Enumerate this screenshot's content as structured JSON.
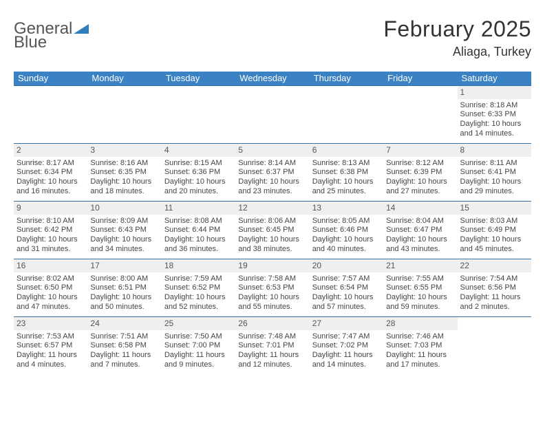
{
  "brand": {
    "text1": "General",
    "text2": "Blue",
    "text_color": "#555555",
    "accent_color": "#2f7fbf"
  },
  "title": "February 2025",
  "location": "Aliaga, Turkey",
  "header_bg": "#3b82c4",
  "header_fg": "#ffffff",
  "rule_color": "#3b6fa0",
  "daynum_bg": "#efefef",
  "day_names": [
    "Sunday",
    "Monday",
    "Tuesday",
    "Wednesday",
    "Thursday",
    "Friday",
    "Saturday"
  ],
  "weeks": [
    [
      {
        "n": "",
        "sr": "",
        "ss": "",
        "dl": ""
      },
      {
        "n": "",
        "sr": "",
        "ss": "",
        "dl": ""
      },
      {
        "n": "",
        "sr": "",
        "ss": "",
        "dl": ""
      },
      {
        "n": "",
        "sr": "",
        "ss": "",
        "dl": ""
      },
      {
        "n": "",
        "sr": "",
        "ss": "",
        "dl": ""
      },
      {
        "n": "",
        "sr": "",
        "ss": "",
        "dl": ""
      },
      {
        "n": "1",
        "sr": "Sunrise: 8:18 AM",
        "ss": "Sunset: 6:33 PM",
        "dl": "Daylight: 10 hours and 14 minutes."
      }
    ],
    [
      {
        "n": "2",
        "sr": "Sunrise: 8:17 AM",
        "ss": "Sunset: 6:34 PM",
        "dl": "Daylight: 10 hours and 16 minutes."
      },
      {
        "n": "3",
        "sr": "Sunrise: 8:16 AM",
        "ss": "Sunset: 6:35 PM",
        "dl": "Daylight: 10 hours and 18 minutes."
      },
      {
        "n": "4",
        "sr": "Sunrise: 8:15 AM",
        "ss": "Sunset: 6:36 PM",
        "dl": "Daylight: 10 hours and 20 minutes."
      },
      {
        "n": "5",
        "sr": "Sunrise: 8:14 AM",
        "ss": "Sunset: 6:37 PM",
        "dl": "Daylight: 10 hours and 23 minutes."
      },
      {
        "n": "6",
        "sr": "Sunrise: 8:13 AM",
        "ss": "Sunset: 6:38 PM",
        "dl": "Daylight: 10 hours and 25 minutes."
      },
      {
        "n": "7",
        "sr": "Sunrise: 8:12 AM",
        "ss": "Sunset: 6:39 PM",
        "dl": "Daylight: 10 hours and 27 minutes."
      },
      {
        "n": "8",
        "sr": "Sunrise: 8:11 AM",
        "ss": "Sunset: 6:41 PM",
        "dl": "Daylight: 10 hours and 29 minutes."
      }
    ],
    [
      {
        "n": "9",
        "sr": "Sunrise: 8:10 AM",
        "ss": "Sunset: 6:42 PM",
        "dl": "Daylight: 10 hours and 31 minutes."
      },
      {
        "n": "10",
        "sr": "Sunrise: 8:09 AM",
        "ss": "Sunset: 6:43 PM",
        "dl": "Daylight: 10 hours and 34 minutes."
      },
      {
        "n": "11",
        "sr": "Sunrise: 8:08 AM",
        "ss": "Sunset: 6:44 PM",
        "dl": "Daylight: 10 hours and 36 minutes."
      },
      {
        "n": "12",
        "sr": "Sunrise: 8:06 AM",
        "ss": "Sunset: 6:45 PM",
        "dl": "Daylight: 10 hours and 38 minutes."
      },
      {
        "n": "13",
        "sr": "Sunrise: 8:05 AM",
        "ss": "Sunset: 6:46 PM",
        "dl": "Daylight: 10 hours and 40 minutes."
      },
      {
        "n": "14",
        "sr": "Sunrise: 8:04 AM",
        "ss": "Sunset: 6:47 PM",
        "dl": "Daylight: 10 hours and 43 minutes."
      },
      {
        "n": "15",
        "sr": "Sunrise: 8:03 AM",
        "ss": "Sunset: 6:49 PM",
        "dl": "Daylight: 10 hours and 45 minutes."
      }
    ],
    [
      {
        "n": "16",
        "sr": "Sunrise: 8:02 AM",
        "ss": "Sunset: 6:50 PM",
        "dl": "Daylight: 10 hours and 47 minutes."
      },
      {
        "n": "17",
        "sr": "Sunrise: 8:00 AM",
        "ss": "Sunset: 6:51 PM",
        "dl": "Daylight: 10 hours and 50 minutes."
      },
      {
        "n": "18",
        "sr": "Sunrise: 7:59 AM",
        "ss": "Sunset: 6:52 PM",
        "dl": "Daylight: 10 hours and 52 minutes."
      },
      {
        "n": "19",
        "sr": "Sunrise: 7:58 AM",
        "ss": "Sunset: 6:53 PM",
        "dl": "Daylight: 10 hours and 55 minutes."
      },
      {
        "n": "20",
        "sr": "Sunrise: 7:57 AM",
        "ss": "Sunset: 6:54 PM",
        "dl": "Daylight: 10 hours and 57 minutes."
      },
      {
        "n": "21",
        "sr": "Sunrise: 7:55 AM",
        "ss": "Sunset: 6:55 PM",
        "dl": "Daylight: 10 hours and 59 minutes."
      },
      {
        "n": "22",
        "sr": "Sunrise: 7:54 AM",
        "ss": "Sunset: 6:56 PM",
        "dl": "Daylight: 11 hours and 2 minutes."
      }
    ],
    [
      {
        "n": "23",
        "sr": "Sunrise: 7:53 AM",
        "ss": "Sunset: 6:57 PM",
        "dl": "Daylight: 11 hours and 4 minutes."
      },
      {
        "n": "24",
        "sr": "Sunrise: 7:51 AM",
        "ss": "Sunset: 6:58 PM",
        "dl": "Daylight: 11 hours and 7 minutes."
      },
      {
        "n": "25",
        "sr": "Sunrise: 7:50 AM",
        "ss": "Sunset: 7:00 PM",
        "dl": "Daylight: 11 hours and 9 minutes."
      },
      {
        "n": "26",
        "sr": "Sunrise: 7:48 AM",
        "ss": "Sunset: 7:01 PM",
        "dl": "Daylight: 11 hours and 12 minutes."
      },
      {
        "n": "27",
        "sr": "Sunrise: 7:47 AM",
        "ss": "Sunset: 7:02 PM",
        "dl": "Daylight: 11 hours and 14 minutes."
      },
      {
        "n": "28",
        "sr": "Sunrise: 7:46 AM",
        "ss": "Sunset: 7:03 PM",
        "dl": "Daylight: 11 hours and 17 minutes."
      },
      {
        "n": "",
        "sr": "",
        "ss": "",
        "dl": ""
      }
    ]
  ]
}
